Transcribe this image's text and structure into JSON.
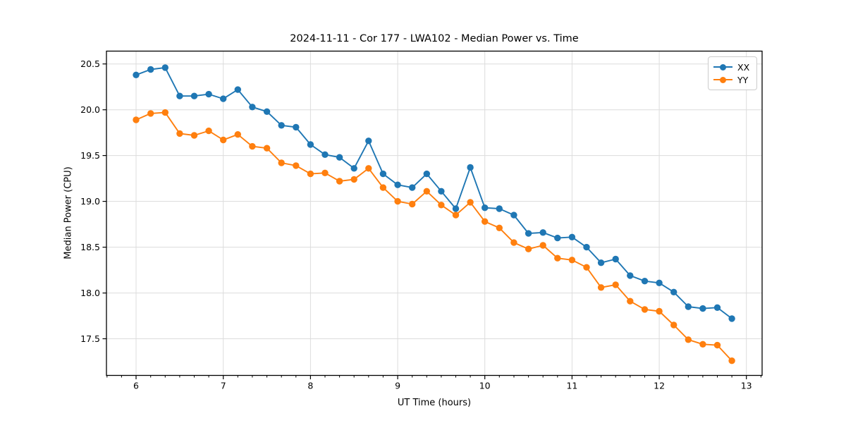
{
  "title": "2024-11-11 - Cor 177 - LWA102 - Median Power vs. Time",
  "colors": {
    "series_xx": "#1f77b4",
    "series_yy": "#ff7f0e",
    "grid": "#dcdcdc",
    "spine": "#000000",
    "background": "#ffffff"
  },
  "legend": {
    "position": "upper right",
    "entries": [
      {
        "label": "XX",
        "color": "#1f77b4"
      },
      {
        "label": "YY",
        "color": "#ff7f0e"
      }
    ]
  },
  "chart_data": {
    "type": "line",
    "title": "2024-11-11 - Cor 177 - LWA102 - Median Power vs. Time",
    "xlabel": "UT Time (hours)",
    "ylabel": "Median Power (CPU)",
    "xlim": [
      5.66,
      13.18
    ],
    "ylim": [
      17.1,
      20.64
    ],
    "xticks": [
      6,
      7,
      8,
      9,
      10,
      11,
      12,
      13
    ],
    "xtick_labels": [
      "6",
      "7",
      "8",
      "9",
      "10",
      "11",
      "12",
      "13"
    ],
    "yticks": [
      17.5,
      18.0,
      18.5,
      19.0,
      19.5,
      20.0,
      20.5
    ],
    "ytick_labels": [
      "17.5",
      "18.0",
      "18.5",
      "19.0",
      "19.5",
      "20.0",
      "20.5"
    ],
    "minor_xtick_step": 0.16667,
    "grid": true,
    "legend_position": "upper right",
    "x": [
      6.0,
      6.1667,
      6.3333,
      6.5,
      6.6667,
      6.8333,
      7.0,
      7.1667,
      7.3333,
      7.5,
      7.6667,
      7.8333,
      8.0,
      8.1667,
      8.3333,
      8.5,
      8.6667,
      8.8333,
      9.0,
      9.1667,
      9.3333,
      9.5,
      9.6667,
      9.8333,
      10.0,
      10.1667,
      10.3333,
      10.5,
      10.6667,
      10.8333,
      11.0,
      11.1667,
      11.3333,
      11.5,
      11.6667,
      11.8333,
      12.0,
      12.1667,
      12.3333,
      12.5,
      12.6667,
      12.8333
    ],
    "series": [
      {
        "name": "XX",
        "color": "#1f77b4",
        "values": [
          20.38,
          20.44,
          20.46,
          20.15,
          20.15,
          20.17,
          20.12,
          20.22,
          20.03,
          19.98,
          19.83,
          19.81,
          19.62,
          19.51,
          19.48,
          19.36,
          19.66,
          19.3,
          19.18,
          19.15,
          19.3,
          19.11,
          18.92,
          19.37,
          18.93,
          18.92,
          18.85,
          18.65,
          18.66,
          18.6,
          18.61,
          18.5,
          18.33,
          18.37,
          18.19,
          18.13,
          18.11,
          18.01,
          17.85,
          17.83,
          17.84,
          17.72
        ]
      },
      {
        "name": "YY",
        "color": "#ff7f0e",
        "values": [
          19.89,
          19.96,
          19.97,
          19.74,
          19.72,
          19.77,
          19.67,
          19.73,
          19.6,
          19.58,
          19.42,
          19.39,
          19.3,
          19.31,
          19.22,
          19.24,
          19.36,
          19.15,
          19.0,
          18.97,
          19.11,
          18.96,
          18.85,
          18.99,
          18.78,
          18.71,
          18.55,
          18.48,
          18.52,
          18.38,
          18.36,
          18.28,
          18.06,
          18.09,
          17.91,
          17.82,
          17.8,
          17.65,
          17.49,
          17.44,
          17.43,
          17.26
        ]
      }
    ]
  }
}
